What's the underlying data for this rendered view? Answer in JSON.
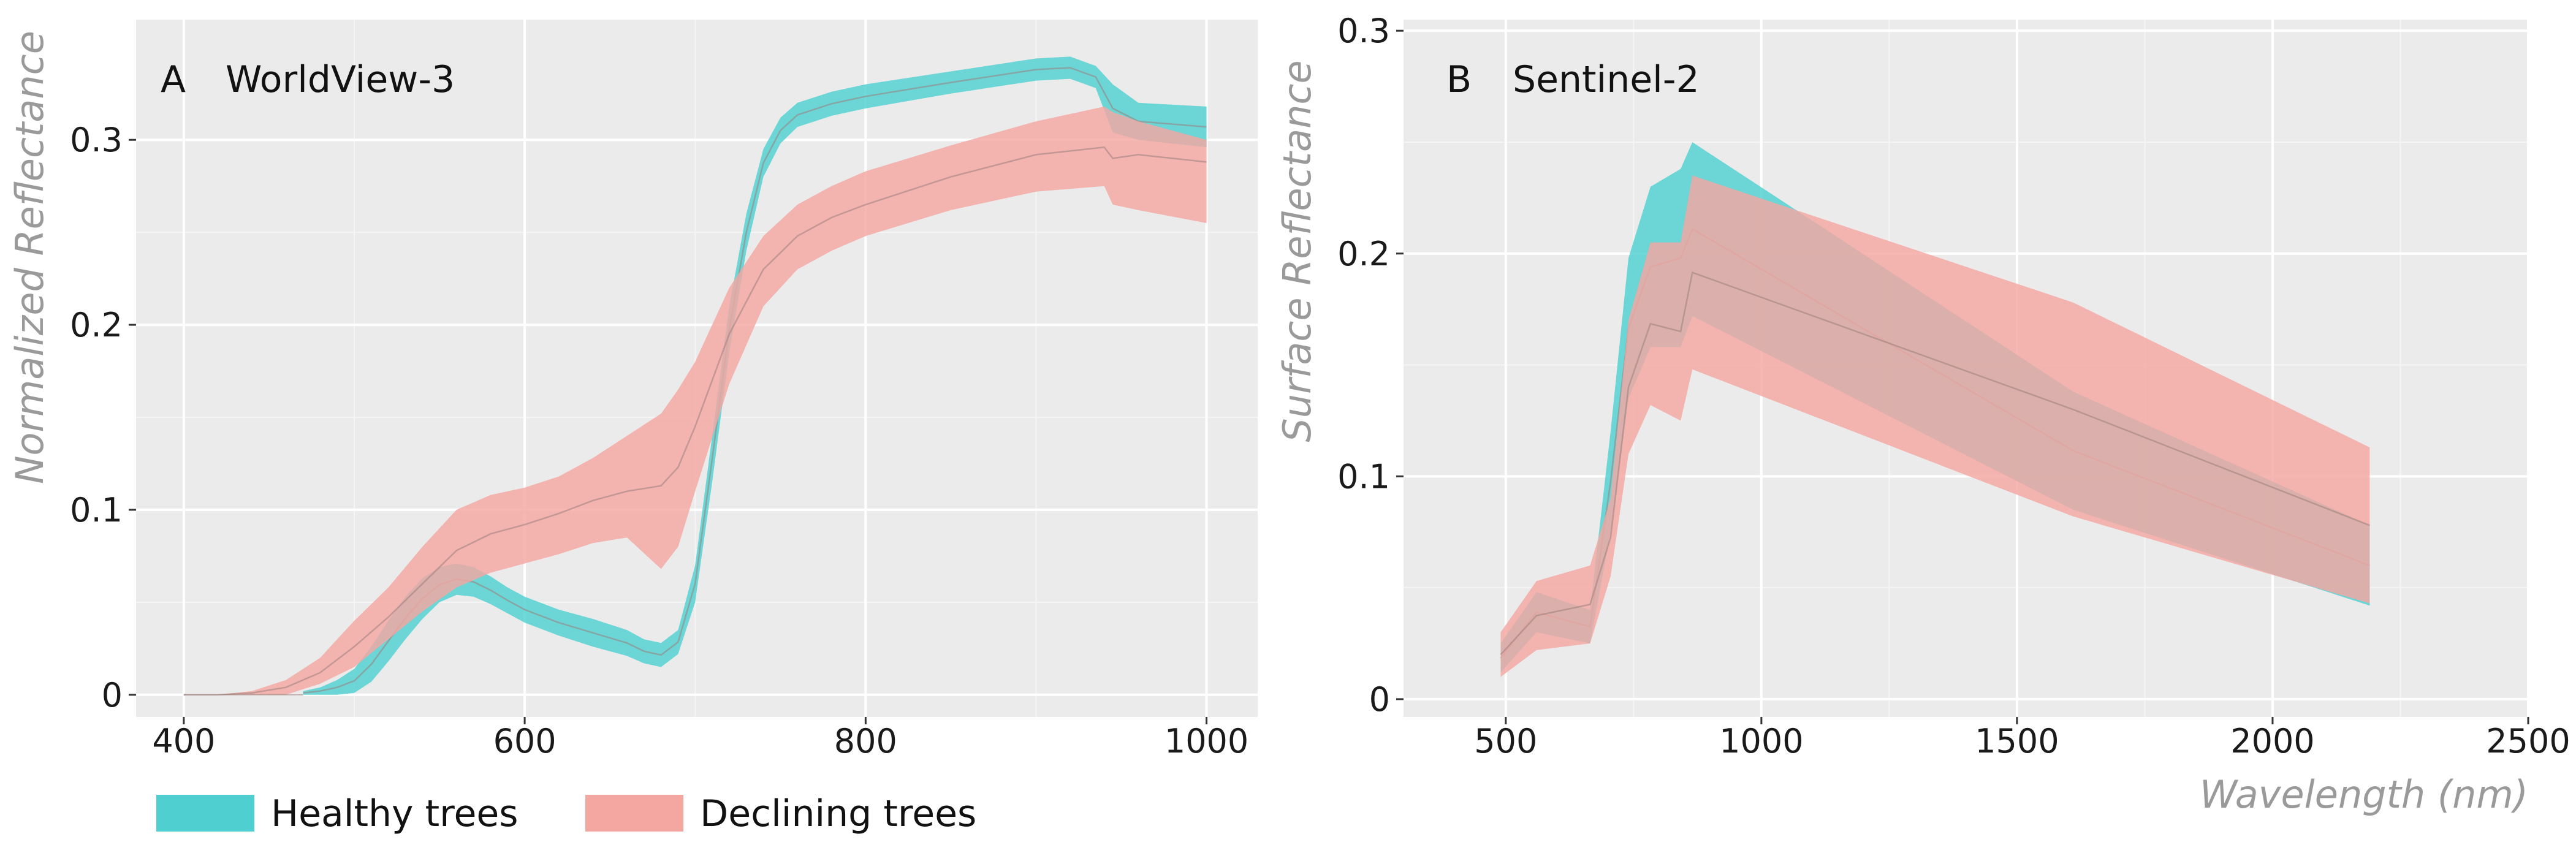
{
  "legend": {
    "position": "bottom-left",
    "entries": [
      {
        "label": "Healthy trees",
        "color": "#4fcfcf"
      },
      {
        "label": "Declining trees",
        "color": "#f4a6a1"
      }
    ]
  },
  "chart_data": [
    {
      "type": "area",
      "panel": "A",
      "title": "WorldView-3",
      "xlabel": "",
      "ylabel": "Normalized Reflectance",
      "xlim": [
        372,
        1030
      ],
      "ylim": [
        -0.012,
        0.365
      ],
      "xticks": [
        400,
        600,
        800,
        1000
      ],
      "yticks": [
        0,
        0.1,
        0.2,
        0.3
      ],
      "ytick_labels": [
        "0",
        "0.1",
        "0.2",
        "0.3"
      ],
      "grid": true,
      "series": [
        {
          "name": "Healthy trees",
          "x": [
            470,
            480,
            490,
            500,
            510,
            520,
            530,
            540,
            550,
            560,
            570,
            580,
            590,
            600,
            620,
            640,
            660,
            670,
            680,
            690,
            700,
            710,
            720,
            730,
            740,
            750,
            760,
            780,
            800,
            850,
            900,
            920,
            935,
            945,
            960,
            1000
          ],
          "upper": [
            0.002,
            0.004,
            0.008,
            0.014,
            0.026,
            0.04,
            0.053,
            0.063,
            0.069,
            0.071,
            0.069,
            0.064,
            0.058,
            0.053,
            0.046,
            0.041,
            0.035,
            0.03,
            0.028,
            0.035,
            0.07,
            0.14,
            0.21,
            0.26,
            0.295,
            0.312,
            0.32,
            0.326,
            0.33,
            0.337,
            0.344,
            0.345,
            0.34,
            0.33,
            0.32,
            0.318
          ],
          "lower": [
            0.0,
            0.0,
            0.0,
            0.001,
            0.007,
            0.018,
            0.03,
            0.041,
            0.05,
            0.054,
            0.053,
            0.049,
            0.044,
            0.039,
            0.032,
            0.026,
            0.021,
            0.017,
            0.015,
            0.022,
            0.05,
            0.115,
            0.185,
            0.24,
            0.28,
            0.298,
            0.307,
            0.313,
            0.317,
            0.325,
            0.332,
            0.333,
            0.328,
            0.304,
            0.3,
            0.296
          ]
        },
        {
          "name": "Declining trees",
          "x": [
            400,
            420,
            440,
            460,
            480,
            500,
            520,
            540,
            560,
            580,
            600,
            620,
            640,
            660,
            680,
            690,
            700,
            720,
            740,
            760,
            780,
            800,
            850,
            900,
            940,
            945,
            960,
            1000
          ],
          "upper": [
            0.0,
            0.0,
            0.002,
            0.008,
            0.02,
            0.04,
            0.058,
            0.08,
            0.1,
            0.108,
            0.112,
            0.118,
            0.128,
            0.14,
            0.152,
            0.165,
            0.18,
            0.22,
            0.248,
            0.265,
            0.275,
            0.283,
            0.297,
            0.31,
            0.318,
            0.315,
            0.31,
            0.3
          ],
          "mean": [
            0.0,
            0.0,
            0.001,
            0.004,
            0.012,
            0.026,
            0.042,
            0.06,
            0.078,
            0.087,
            0.092,
            0.098,
            0.105,
            0.11,
            0.113,
            0.123,
            0.145,
            0.195,
            0.23,
            0.248,
            0.258,
            0.265,
            0.28,
            0.292,
            0.296,
            0.29,
            0.292,
            0.288
          ],
          "lower": [
            0.0,
            0.0,
            0.0,
            0.0,
            0.006,
            0.015,
            0.03,
            0.045,
            0.058,
            0.066,
            0.071,
            0.076,
            0.082,
            0.085,
            0.068,
            0.08,
            0.11,
            0.168,
            0.21,
            0.23,
            0.24,
            0.248,
            0.262,
            0.272,
            0.275,
            0.265,
            0.262,
            0.255
          ]
        }
      ]
    },
    {
      "type": "area",
      "panel": "B",
      "title": "Sentinel-2",
      "xlabel": "Wavelength (nm)",
      "ylabel": "Surface Reflectance",
      "xlim": [
        300,
        2500
      ],
      "ylim": [
        -0.008,
        0.305
      ],
      "xticks": [
        500,
        1000,
        1500,
        2000,
        2500
      ],
      "yticks": [
        0,
        0.1,
        0.2,
        0.3
      ],
      "ytick_labels": [
        "0",
        "0.1",
        "0.2",
        "0.3"
      ],
      "grid": true,
      "series": [
        {
          "name": "Healthy trees",
          "x": [
            490,
            560,
            665,
            705,
            740,
            783,
            842,
            865,
            1610,
            2190
          ],
          "upper": [
            0.025,
            0.048,
            0.04,
            0.12,
            0.198,
            0.23,
            0.238,
            0.25,
            0.138,
            0.078
          ],
          "lower": [
            0.012,
            0.03,
            0.025,
            0.075,
            0.135,
            0.158,
            0.158,
            0.172,
            0.085,
            0.042
          ]
        },
        {
          "name": "Declining trees",
          "x": [
            490,
            560,
            665,
            705,
            740,
            783,
            842,
            865,
            1610,
            2190
          ],
          "upper": [
            0.03,
            0.053,
            0.06,
            0.09,
            0.17,
            0.205,
            0.205,
            0.235,
            0.178,
            0.113
          ],
          "lower": [
            0.01,
            0.022,
            0.025,
            0.055,
            0.11,
            0.132,
            0.125,
            0.148,
            0.082,
            0.043
          ]
        }
      ]
    }
  ]
}
